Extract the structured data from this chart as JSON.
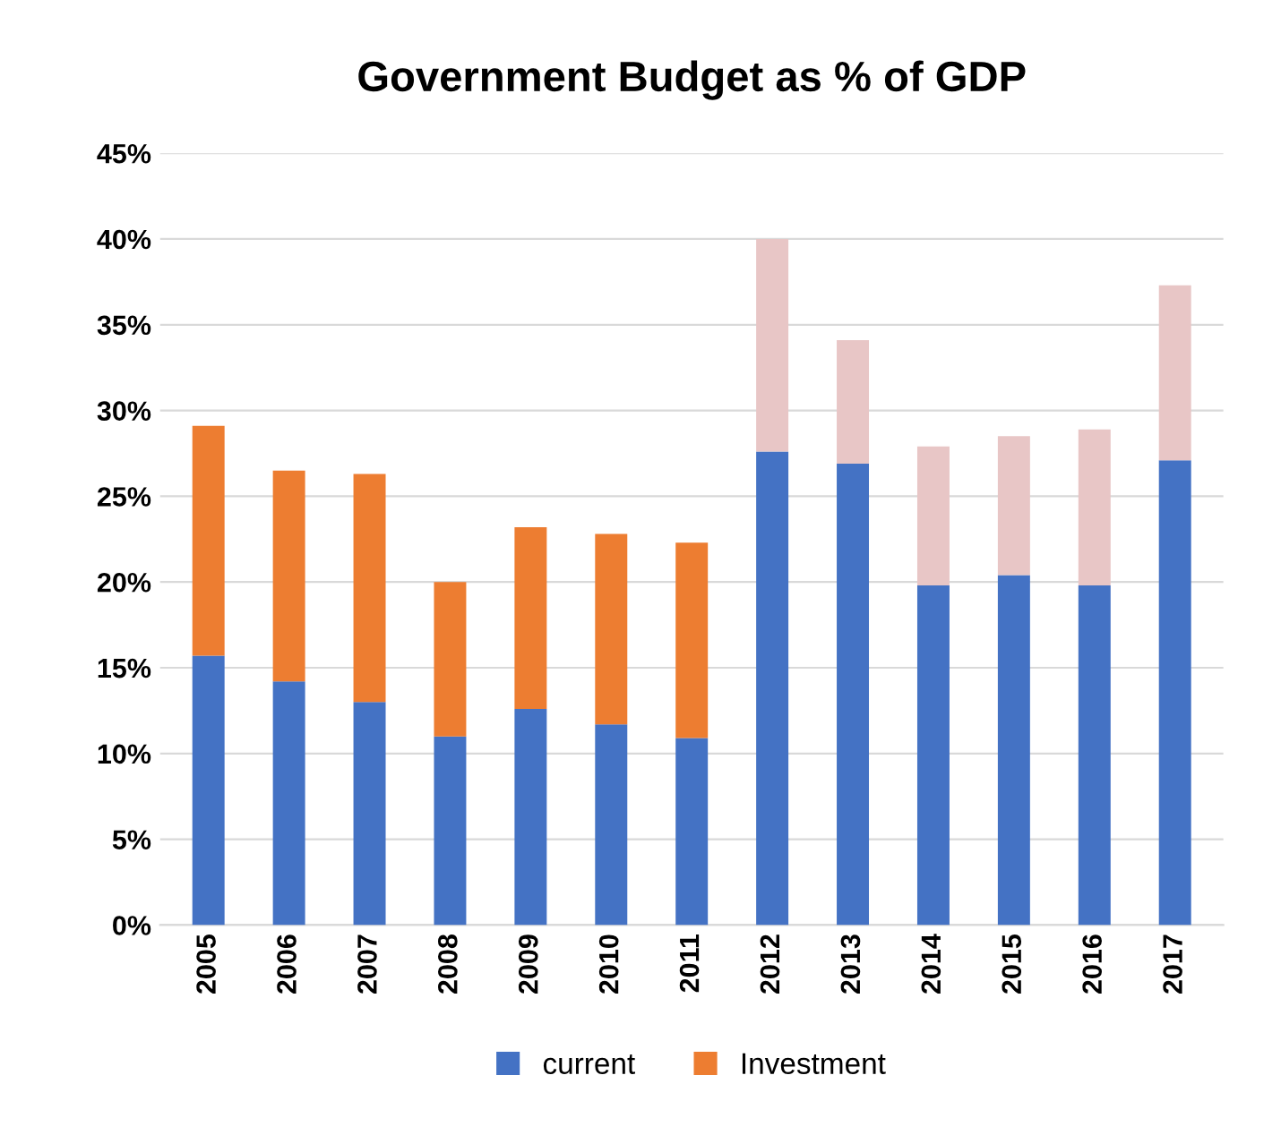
{
  "chart_data": {
    "type": "bar",
    "title": "Government Budget as % of GDP",
    "stacked": true,
    "categories": [
      "2005",
      "2006",
      "2007",
      "2008",
      "2009",
      "2010",
      "2011",
      "2012",
      "2013",
      "2014",
      "2015",
      "2016",
      "2017"
    ],
    "series": [
      {
        "name": "current",
        "color": "#4472c4",
        "values": [
          15.7,
          14.2,
          13.0,
          11.0,
          12.6,
          11.7,
          10.9,
          27.6,
          26.9,
          19.8,
          20.4,
          19.8,
          27.1
        ]
      },
      {
        "name": "Investment",
        "color": "#ed7d31",
        "colors": [
          "#ed7d31",
          "#ed7d31",
          "#ed7d31",
          "#ed7d31",
          "#ed7d31",
          "#ed7d31",
          "#ed7d31",
          "#e8c6c6",
          "#e8c6c6",
          "#e8c6c6",
          "#e8c6c6",
          "#e8c6c6",
          "#e8c6c6"
        ],
        "values": [
          13.4,
          12.3,
          13.3,
          9.0,
          10.6,
          11.1,
          11.4,
          12.4,
          7.2,
          8.1,
          8.1,
          9.1,
          10.2
        ]
      }
    ],
    "ylim": [
      0,
      45
    ],
    "yticks": [
      {
        "value": 0,
        "label": "0%"
      },
      {
        "value": 5,
        "label": "5%"
      },
      {
        "value": 10,
        "label": "10%"
      },
      {
        "value": 15,
        "label": "15%"
      },
      {
        "value": 20,
        "label": "20%"
      },
      {
        "value": 25,
        "label": "25%"
      },
      {
        "value": 30,
        "label": "30%"
      },
      {
        "value": 35,
        "label": "35%"
      },
      {
        "value": 40,
        "label": "40%"
      },
      {
        "value": 45,
        "label": "45%"
      }
    ],
    "grid": "y",
    "legend": "bottom"
  }
}
